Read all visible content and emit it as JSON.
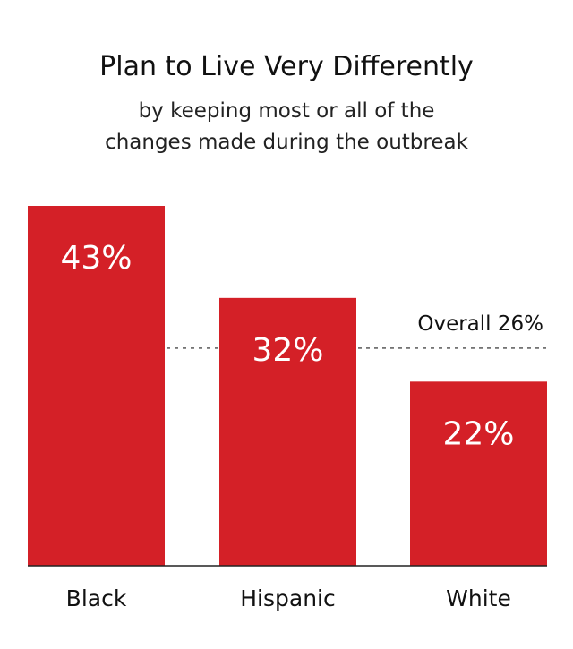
{
  "chart_data": {
    "type": "bar",
    "title": "Plan to Live Very Differently",
    "subtitle_lines": [
      "by keeping most or all of the",
      "changes made during the outbreak"
    ],
    "categories": [
      "Black",
      "Hispanic",
      "White"
    ],
    "values": [
      43,
      32,
      22
    ],
    "data_labels": [
      "43%",
      "32%",
      "22%"
    ],
    "reference_line": {
      "value": 26,
      "label": "Overall 26%"
    },
    "ylim": [
      0,
      43
    ],
    "grid": false,
    "legend": "none",
    "bar_color": "#d42027",
    "label_color": "#ffffff",
    "axis_color": "#222222"
  }
}
